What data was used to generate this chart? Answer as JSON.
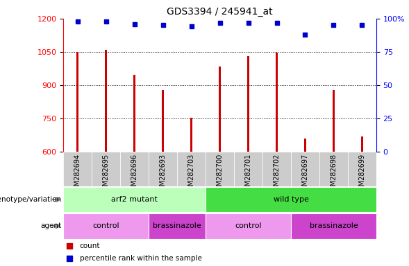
{
  "title": "GDS3394 / 245941_at",
  "samples": [
    "GSM282694",
    "GSM282695",
    "GSM282696",
    "GSM282693",
    "GSM282703",
    "GSM282700",
    "GSM282701",
    "GSM282702",
    "GSM282697",
    "GSM282698",
    "GSM282699"
  ],
  "bar_values": [
    1050,
    1058,
    945,
    878,
    752,
    985,
    1030,
    1045,
    660,
    878,
    668
  ],
  "blue_dot_values": [
    98,
    98,
    96,
    95,
    94,
    97,
    97,
    97,
    88,
    95,
    95
  ],
  "bar_color": "#cc0000",
  "dot_color": "#0000cc",
  "ylim_left": [
    600,
    1200
  ],
  "ylim_right": [
    0,
    100
  ],
  "yticks_left": [
    600,
    750,
    900,
    1050,
    1200
  ],
  "yticks_right": [
    0,
    25,
    50,
    75,
    100
  ],
  "grid_values": [
    750,
    900,
    1050
  ],
  "genotype_labels": [
    {
      "label": "arf2 mutant",
      "start": 0,
      "end": 5,
      "color": "#bbffbb"
    },
    {
      "label": "wild type",
      "start": 5,
      "end": 11,
      "color": "#44dd44"
    }
  ],
  "agent_labels": [
    {
      "label": "control",
      "start": 0,
      "end": 3,
      "color": "#ee99ee"
    },
    {
      "label": "brassinazole",
      "start": 3,
      "end": 5,
      "color": "#cc44cc"
    },
    {
      "label": "control",
      "start": 5,
      "end": 8,
      "color": "#ee99ee"
    },
    {
      "label": "brassinazole",
      "start": 8,
      "end": 11,
      "color": "#cc44cc"
    }
  ],
  "legend_items": [
    {
      "label": "count",
      "color": "#cc0000",
      "marker": "s"
    },
    {
      "label": "percentile rank within the sample",
      "color": "#0000cc",
      "marker": "s"
    }
  ],
  "row_label_genotype": "genotype/variation",
  "row_label_agent": "agent",
  "bar_width": 0.08,
  "tick_bg_color": "#cccccc",
  "background_color": "#ffffff"
}
